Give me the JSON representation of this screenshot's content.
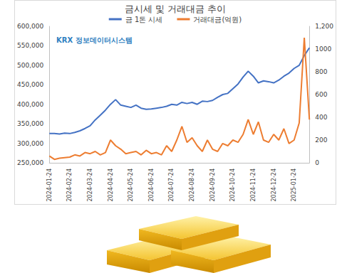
{
  "chart_data": {
    "type": "line",
    "title": "금시세 및 거래대금 추이",
    "annotations": [
      "KRX 정보데이터시스템"
    ],
    "categories": [
      "2024-01-24",
      null,
      null,
      null,
      "2024-02-24",
      null,
      null,
      null,
      "2024-03-24",
      null,
      null,
      null,
      "2024-04-24",
      null,
      null,
      null,
      "2024-05-24",
      null,
      null,
      null,
      "2024-06-24",
      null,
      null,
      null,
      "2024-07-24",
      null,
      null,
      null,
      "2024-08-24",
      null,
      null,
      null,
      "2024-09-24",
      null,
      null,
      null,
      "2024-10-24",
      null,
      null,
      null,
      "2024-11-24",
      null,
      null,
      null,
      "2024-12-24",
      null,
      null,
      null,
      "2025-01-24",
      null,
      null,
      null
    ],
    "series": [
      {
        "name": "금 1돈 시세",
        "color": "#4472c4",
        "values": [
          325000,
          325000,
          324000,
          326000,
          325000,
          328000,
          332000,
          338000,
          345000,
          360000,
          372000,
          385000,
          400000,
          412000,
          398000,
          395000,
          392000,
          398000,
          390000,
          387000,
          388000,
          390000,
          392000,
          395000,
          400000,
          398000,
          405000,
          402000,
          405000,
          400000,
          408000,
          407000,
          410000,
          418000,
          425000,
          428000,
          440000,
          452000,
          470000,
          485000,
          472000,
          455000,
          460000,
          458000,
          455000,
          462000,
          472000,
          480000,
          492000,
          500000,
          525000,
          545000
        ]
      },
      {
        "name": "거래대금(억원)",
        "color": "#ed7d31",
        "axis": "y2",
        "values": [
          60,
          30,
          40,
          45,
          50,
          70,
          60,
          90,
          80,
          100,
          70,
          90,
          200,
          150,
          120,
          80,
          90,
          100,
          70,
          110,
          80,
          90,
          70,
          150,
          100,
          200,
          320,
          180,
          220,
          150,
          100,
          200,
          120,
          100,
          170,
          150,
          200,
          180,
          250,
          380,
          250,
          360,
          200,
          180,
          250,
          200,
          300,
          170,
          200,
          350,
          1100,
          380
        ]
      }
    ],
    "ylim": [
      250000,
      600000
    ],
    "yticks": [
      {
        "value": 250000,
        "label": "250,000"
      },
      {
        "value": 300000,
        "label": "300,000"
      },
      {
        "value": 350000,
        "label": "350,000"
      },
      {
        "value": 400000,
        "label": "400,000"
      },
      {
        "value": 450000,
        "label": "450,000"
      },
      {
        "value": 500000,
        "label": "500,000"
      },
      {
        "value": 550000,
        "label": "550,000"
      },
      {
        "value": 600000,
        "label": "600,000"
      }
    ],
    "y2lim": [
      0,
      1200
    ],
    "y2ticks": [
      0,
      200,
      400,
      600,
      800,
      1000,
      {
        "value": 1200,
        "label": "1,200"
      }
    ],
    "grid": false,
    "legend": "top"
  }
}
